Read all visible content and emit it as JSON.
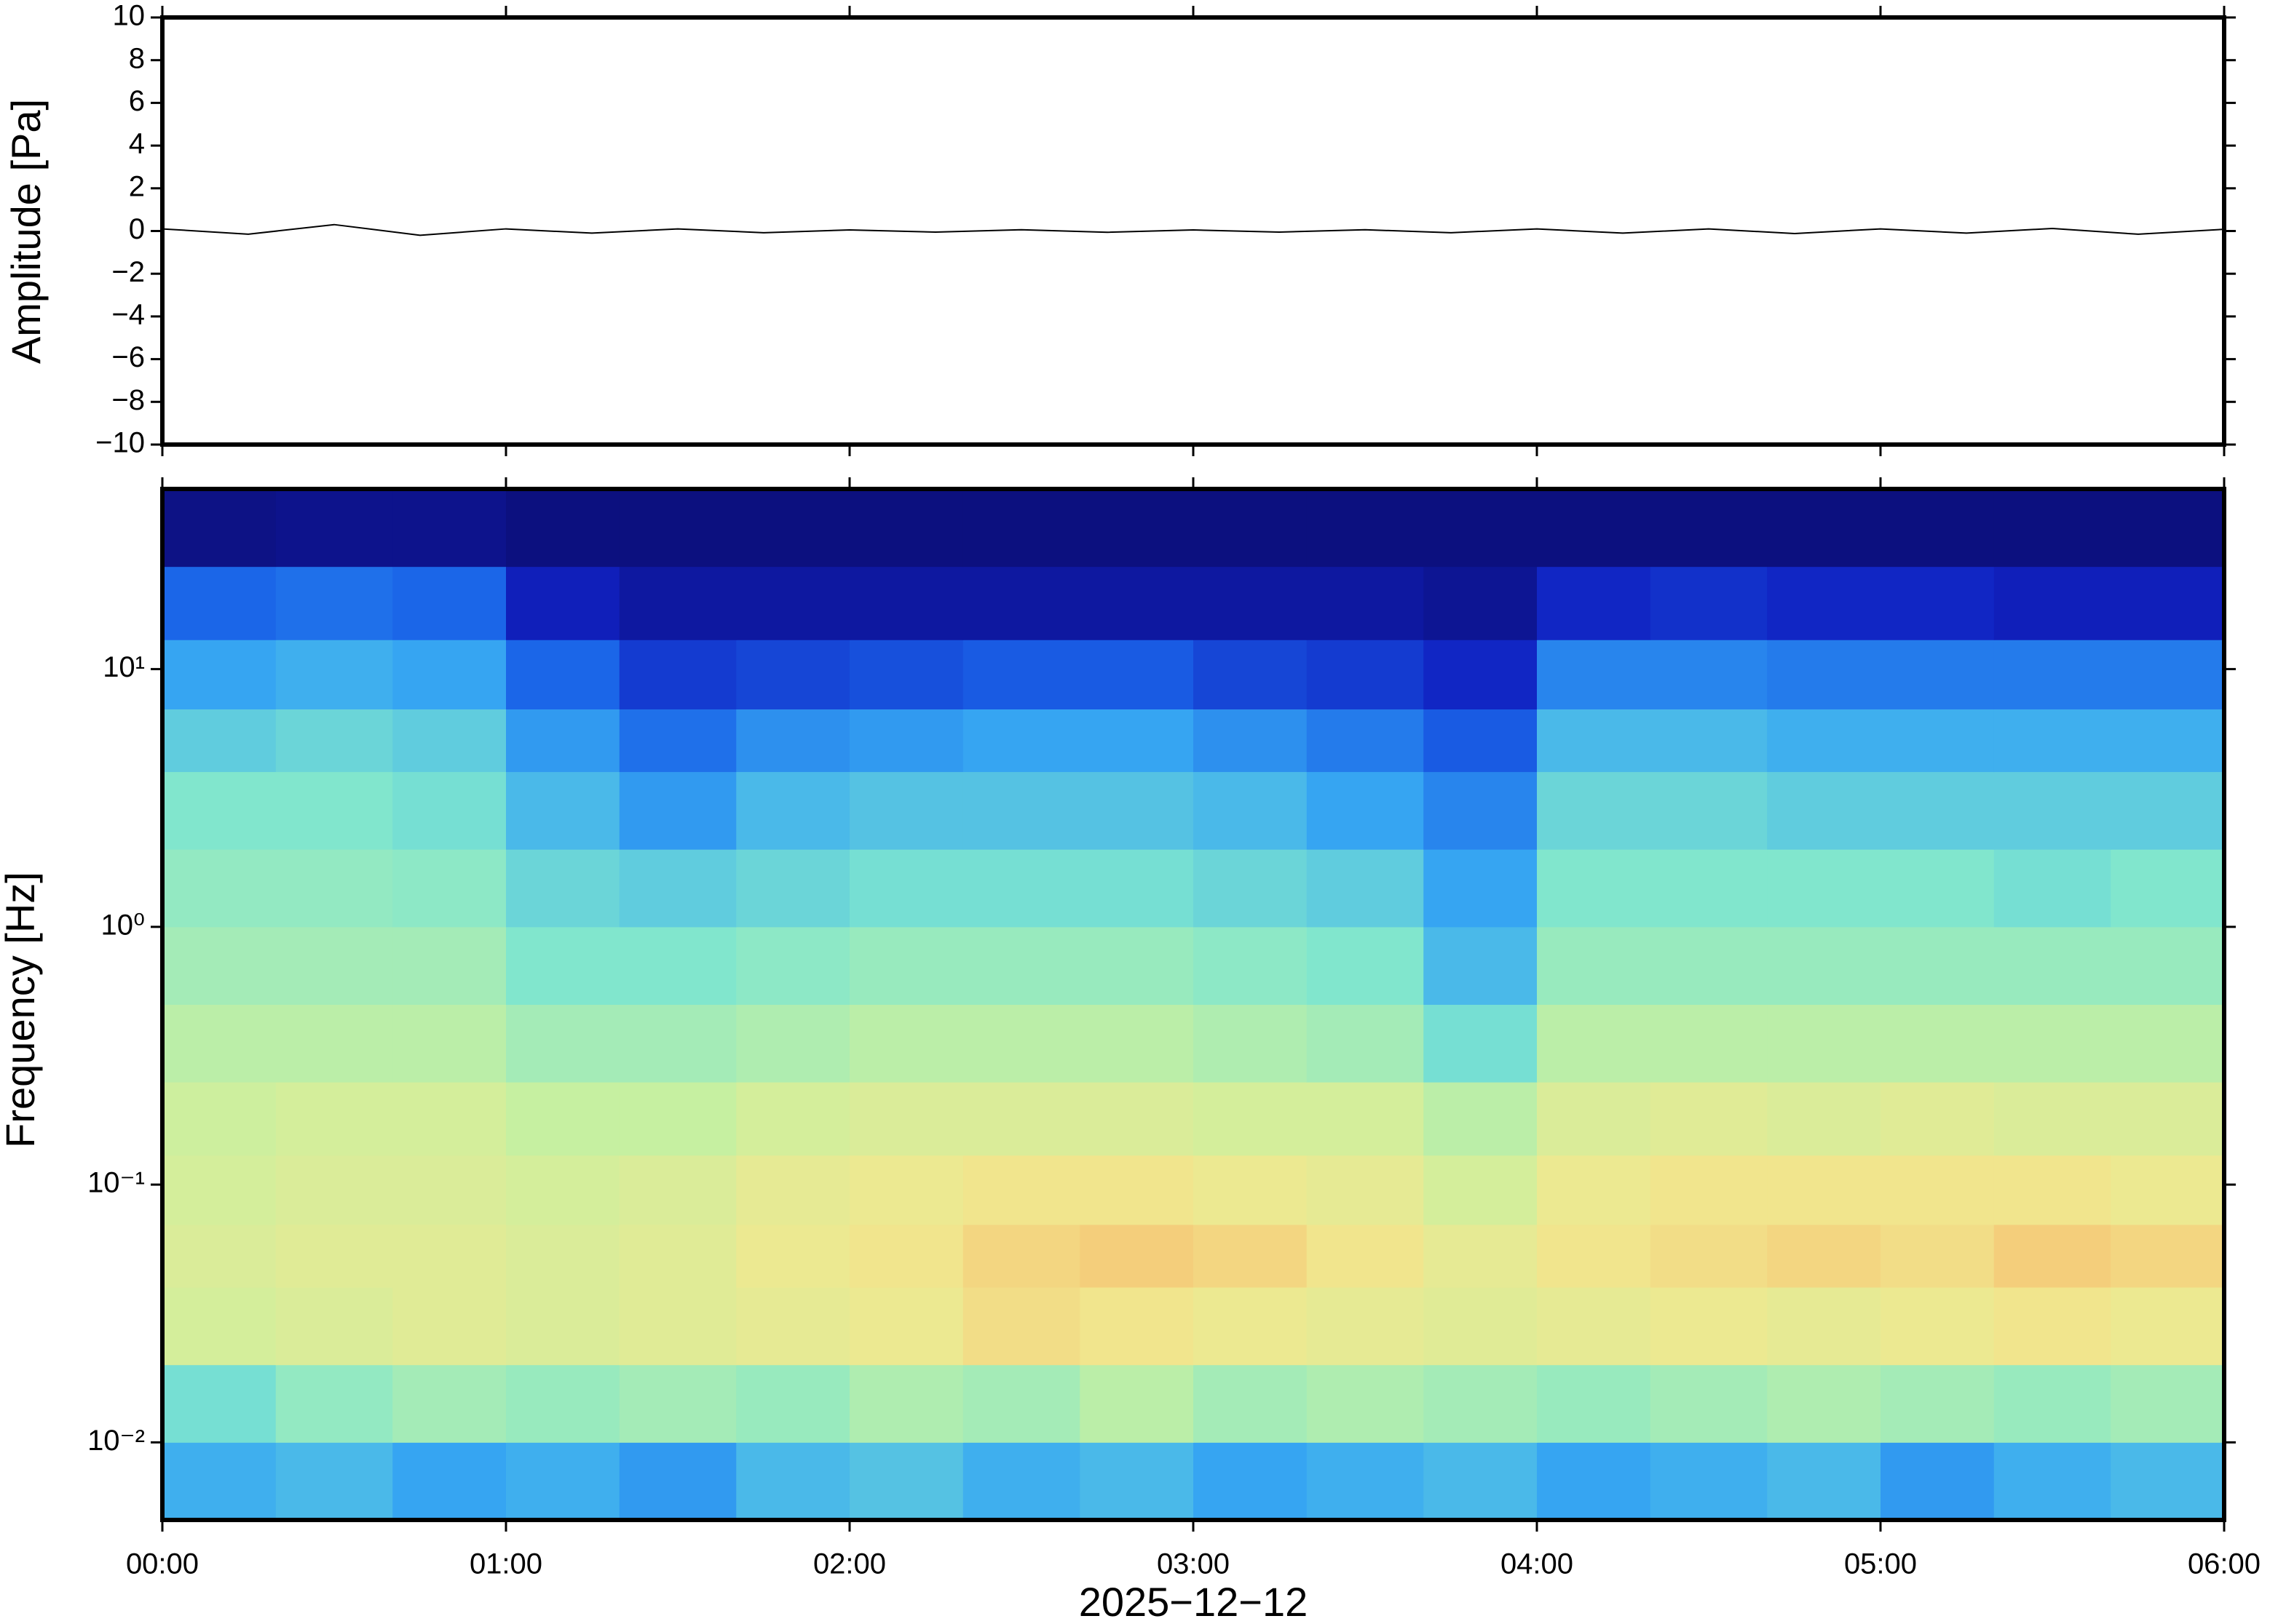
{
  "chart_data": [
    {
      "type": "line",
      "ylabel": "Amplitude [Pa]",
      "color": "#000000",
      "x": [
        0,
        0.25,
        0.5,
        0.75,
        1,
        1.25,
        1.5,
        1.75,
        2,
        2.25,
        2.5,
        2.75,
        3,
        3.25,
        3.5,
        3.75,
        4,
        4.25,
        4.5,
        4.75,
        5,
        5.25,
        5.5,
        5.75,
        6
      ],
      "values": [
        0.1,
        -0.15,
        0.3,
        -0.2,
        0.1,
        -0.1,
        0.1,
        -0.08,
        0.05,
        -0.05,
        0.06,
        -0.06,
        0.05,
        -0.05,
        0.06,
        -0.08,
        0.1,
        -0.1,
        0.1,
        -0.12,
        0.1,
        -0.1,
        0.12,
        -0.15,
        0.08
      ],
      "xlim": [
        0,
        6
      ],
      "xticks": [
        0,
        1,
        2,
        3,
        4,
        5,
        6
      ],
      "ylim": [
        -10,
        10
      ],
      "yticks": [
        {
          "value": -10,
          "label": "−10"
        },
        {
          "value": -8,
          "label": "−8"
        },
        {
          "value": -6,
          "label": "−6"
        },
        {
          "value": -4,
          "label": "−4"
        },
        {
          "value": -2,
          "label": "−2"
        },
        0,
        2,
        4,
        6,
        8,
        10
      ]
    },
    {
      "type": "heatmap",
      "ylabel": "Frequency [Hz]",
      "xlabel": "2025−12−12",
      "log_y": true,
      "xlim": [
        0,
        6
      ],
      "xticks": [
        {
          "value": 0,
          "label": "00:00"
        },
        {
          "value": 1,
          "label": "01:00"
        },
        {
          "value": 2,
          "label": "02:00"
        },
        {
          "value": 3,
          "label": "03:00"
        },
        {
          "value": 4,
          "label": "04:00"
        },
        {
          "value": 5,
          "label": "05:00"
        },
        {
          "value": 6,
          "label": "06:00"
        }
      ],
      "ylim": [
        0.005,
        50
      ],
      "yticks": [
        {
          "value": 0.01,
          "label": "10⁻²"
        },
        {
          "value": 0.1,
          "label": "10⁻¹"
        },
        {
          "value": 1,
          "label": "10⁰"
        },
        {
          "value": 10,
          "label": "10¹"
        }
      ],
      "x_edges": [
        0,
        0.33,
        0.67,
        1,
        1.33,
        1.67,
        2,
        2.33,
        2.67,
        3,
        3.33,
        3.67,
        4,
        4.33,
        4.67,
        5,
        5.33,
        5.67,
        6
      ],
      "y_edges": [
        0.005,
        0.01,
        0.02,
        0.04,
        0.07,
        0.13,
        0.25,
        0.5,
        1,
        2,
        4,
        7,
        13,
        25,
        50
      ],
      "zlim": [
        0,
        90
      ],
      "colorscale": [
        "#0b0b6b",
        "#1020c0",
        "#1a64e8",
        "#37a8f2",
        "#7ee6cf",
        "#c8f0a0",
        "#f0e890",
        "#f8b868"
      ],
      "values": [
        [
          40,
          42,
          38,
          40,
          36,
          42,
          44,
          40,
          42,
          38,
          40,
          42,
          38,
          40,
          42,
          36,
          40,
          42
        ],
        [
          50,
          55,
          58,
          56,
          58,
          56,
          60,
          58,
          62,
          58,
          60,
          58,
          56,
          58,
          60,
          58,
          56,
          58
        ],
        [
          68,
          70,
          72,
          70,
          72,
          74,
          76,
          80,
          78,
          76,
          74,
          72,
          74,
          76,
          74,
          76,
          78,
          76
        ],
        [
          70,
          72,
          72,
          70,
          72,
          76,
          78,
          82,
          84,
          82,
          78,
          74,
          78,
          80,
          82,
          80,
          84,
          82
        ],
        [
          68,
          70,
          70,
          68,
          70,
          74,
          76,
          78,
          78,
          76,
          74,
          68,
          76,
          78,
          78,
          78,
          78,
          76
        ],
        [
          66,
          68,
          68,
          64,
          64,
          68,
          70,
          70,
          70,
          68,
          68,
          62,
          70,
          72,
          70,
          72,
          70,
          70
        ],
        [
          62,
          62,
          62,
          58,
          58,
          60,
          62,
          62,
          62,
          60,
          58,
          50,
          62,
          62,
          62,
          62,
          62,
          62
        ],
        [
          58,
          58,
          58,
          52,
          52,
          54,
          56,
          56,
          56,
          54,
          52,
          42,
          56,
          56,
          56,
          56,
          56,
          56
        ],
        [
          55,
          55,
          54,
          48,
          46,
          48,
          50,
          50,
          50,
          48,
          46,
          38,
          52,
          52,
          52,
          52,
          50,
          52
        ],
        [
          52,
          52,
          50,
          42,
          36,
          42,
          44,
          44,
          44,
          42,
          38,
          32,
          48,
          48,
          46,
          46,
          46,
          46
        ],
        [
          46,
          48,
          46,
          36,
          28,
          34,
          36,
          38,
          38,
          34,
          30,
          24,
          42,
          42,
          40,
          40,
          40,
          40
        ],
        [
          38,
          40,
          38,
          26,
          18,
          20,
          22,
          24,
          24,
          20,
          18,
          14,
          32,
          32,
          30,
          30,
          30,
          30
        ],
        [
          26,
          28,
          26,
          12,
          8,
          8,
          8,
          8,
          8,
          8,
          8,
          6,
          14,
          16,
          14,
          14,
          12,
          12
        ],
        [
          4,
          5,
          5,
          3,
          3,
          3,
          3,
          3,
          3,
          3,
          3,
          3,
          3,
          3,
          3,
          3,
          3,
          3
        ]
      ]
    }
  ]
}
